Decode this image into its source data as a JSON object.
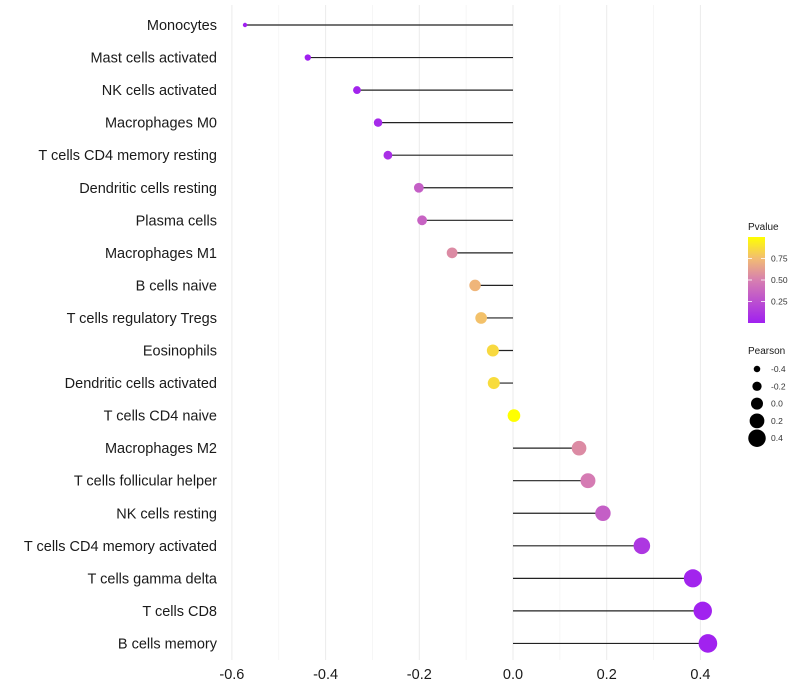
{
  "chart_data": {
    "type": "lollipop",
    "title": "",
    "xlabel": "",
    "ylabel": "",
    "xlim": [
      -0.6,
      0.42
    ],
    "xticks": [
      -0.6,
      -0.4,
      -0.2,
      0.0,
      0.2,
      0.4
    ],
    "xtick_labels": [
      "-0.6",
      "-0.4",
      "-0.2",
      "0.0",
      "0.2",
      "0.4"
    ],
    "grid": true,
    "categories": [
      "Monocytes",
      "Mast cells activated",
      "NK cells activated",
      "Macrophages M0",
      "T cells CD4 memory resting",
      "Dendritic cells resting",
      "Plasma cells",
      "Macrophages M1",
      "B cells naive",
      "T cells regulatory  Tregs",
      "Eosinophils",
      "Dendritic cells activated",
      "T cells CD4 naive",
      "Macrophages M2",
      "T cells follicular helper",
      "NK cells resting",
      "T cells CD4 memory activated",
      "T cells gamma delta",
      "T cells CD8",
      "B cells memory"
    ],
    "pearson": [
      -0.572,
      -0.438,
      -0.333,
      -0.288,
      -0.267,
      -0.201,
      -0.194,
      -0.13,
      -0.081,
      -0.068,
      -0.043,
      -0.041,
      0.002,
      0.141,
      0.16,
      0.192,
      0.275,
      0.384,
      0.405,
      0.416
    ],
    "pvalue": [
      0.0,
      0.0,
      0.02,
      0.05,
      0.08,
      0.33,
      0.35,
      0.55,
      0.72,
      0.77,
      0.86,
      0.87,
      1.0,
      0.55,
      0.48,
      0.33,
      0.12,
      0.02,
      0.01,
      0.01
    ],
    "legend": {
      "placement": "right",
      "color": {
        "title": "Pvalue",
        "ticks": [
          0.25,
          0.5,
          0.75
        ],
        "tick_labels": [
          "0.25",
          "0.50",
          "0.75"
        ],
        "low_color": "#a020f0",
        "mid_color": "#d77fb0",
        "high_color": "#ffff00",
        "range": [
          0,
          1
        ]
      },
      "size": {
        "title": "Pearson",
        "values": [
          -0.4,
          -0.2,
          0.0,
          0.2,
          0.4
        ],
        "labels": [
          "-0.4",
          "-0.2",
          "0.0",
          "0.2",
          "0.4"
        ]
      }
    }
  }
}
